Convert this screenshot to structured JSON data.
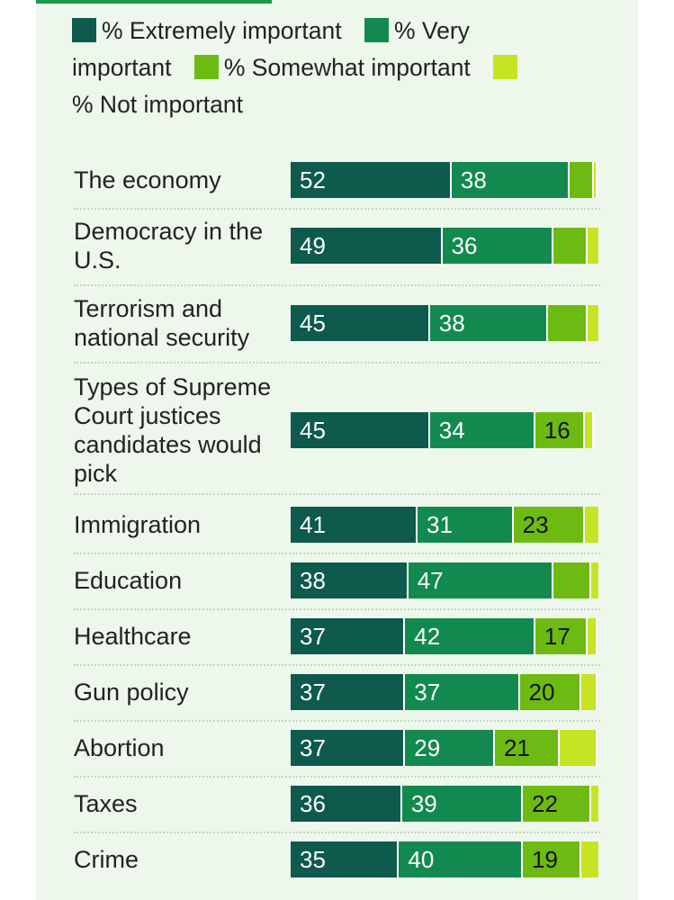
{
  "chart_data": {
    "type": "bar",
    "orientation": "horizontal",
    "stacked": true,
    "title": "",
    "xlabel": "",
    "ylabel": "",
    "xlim": [
      0,
      100
    ],
    "legend_position": "top",
    "categories": [
      "The economy",
      "Democracy in the U.S.",
      "Terrorism and national security",
      "Types of Supreme Court justices candidates would pick",
      "Immigration",
      "Education",
      "Healthcare",
      "Gun policy",
      "Abortion",
      "Taxes",
      "Crime"
    ],
    "series": [
      {
        "name": "% Extremely important",
        "color": "#0e5a4d",
        "values": [
          52,
          49,
          45,
          45,
          41,
          38,
          37,
          37,
          37,
          36,
          35
        ]
      },
      {
        "name": "% Very important",
        "color": "#128a4f",
        "values": [
          38,
          36,
          38,
          34,
          31,
          47,
          42,
          37,
          29,
          39,
          40
        ]
      },
      {
        "name": "% Somewhat important",
        "color": "#6dbb12",
        "values": [
          8,
          11,
          13,
          16,
          23,
          12,
          17,
          20,
          21,
          22,
          19
        ]
      },
      {
        "name": "% Not important",
        "color": "#c6e423",
        "values": [
          1,
          4,
          4,
          3,
          5,
          4,
          3,
          5,
          12,
          4,
          6
        ]
      }
    ],
    "labeled_values": [
      [
        52,
        38,
        null,
        null
      ],
      [
        49,
        36,
        null,
        null
      ],
      [
        45,
        38,
        null,
        null
      ],
      [
        45,
        34,
        16,
        null
      ],
      [
        41,
        31,
        23,
        null
      ],
      [
        38,
        47,
        null,
        null
      ],
      [
        37,
        42,
        17,
        null
      ],
      [
        37,
        37,
        20,
        null
      ],
      [
        37,
        29,
        21,
        null
      ],
      [
        36,
        39,
        22,
        null
      ],
      [
        35,
        40,
        19,
        null
      ]
    ],
    "label_text_colors": [
      "#ffffff",
      "#ffffff",
      "#111111",
      "#111111"
    ]
  }
}
